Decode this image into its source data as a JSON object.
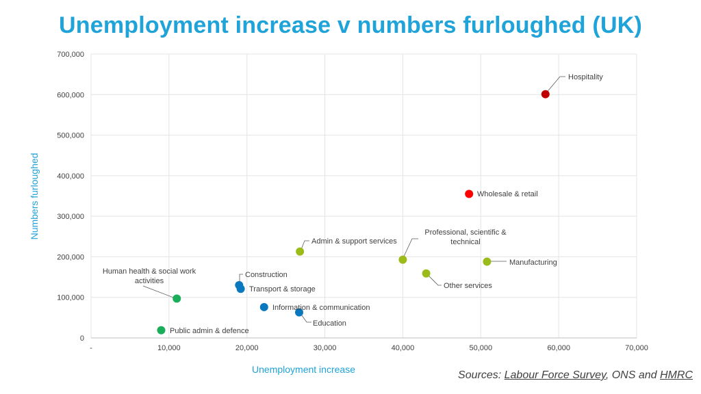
{
  "title": "Unemployment increase v numbers furloughed (UK)",
  "sources": {
    "prefix": "Sources: ",
    "link1": "Labour Force Survey",
    "mid": ", ONS and ",
    "link2": "HMRC"
  },
  "chart_data": {
    "type": "scatter",
    "xlabel": "Unemployment increase",
    "ylabel": "Numbers furloughed",
    "xlim": [
      0,
      70000
    ],
    "ylim": [
      0,
      700000
    ],
    "x_ticks": [
      "-",
      "10,000",
      "20,000",
      "30,000",
      "40,000",
      "50,000",
      "60,000",
      "70,000"
    ],
    "y_ticks": [
      "0",
      "100,000",
      "200,000",
      "300,000",
      "400,000",
      "500,000",
      "600,000",
      "700,000"
    ],
    "grid": true,
    "colors": {
      "dark_red": "#c00000",
      "red": "#ff0000",
      "olive": "#9bbb1a",
      "blue": "#0a78bf",
      "green": "#1aae5a",
      "title": "#1fa3d9"
    },
    "points": [
      {
        "label": "Hospitality",
        "x": 58300,
        "y": 601000,
        "color": "#c00000"
      },
      {
        "label": "Wholesale & retail",
        "x": 48500,
        "y": 355000,
        "color": "#ff0000"
      },
      {
        "label": "Professional, scientific & technical",
        "x": 40000,
        "y": 193000,
        "color": "#9bbb1a"
      },
      {
        "label": "Manufacturing",
        "x": 50800,
        "y": 188000,
        "color": "#9bbb1a"
      },
      {
        "label": "Admin & support services",
        "x": 26800,
        "y": 213000,
        "color": "#9bbb1a"
      },
      {
        "label": "Other services",
        "x": 43000,
        "y": 159000,
        "color": "#9bbb1a"
      },
      {
        "label": "Construction",
        "x": 19000,
        "y": 130000,
        "color": "#0a78bf"
      },
      {
        "label": "Transport & storage",
        "x": 19200,
        "y": 121000,
        "color": "#0a78bf"
      },
      {
        "label": "Information & communication",
        "x": 22200,
        "y": 76000,
        "color": "#0a78bf"
      },
      {
        "label": "Education",
        "x": 26700,
        "y": 63000,
        "color": "#0a78bf"
      },
      {
        "label": "Human health & social work activities",
        "x": 11000,
        "y": 97000,
        "color": "#1aae5a"
      },
      {
        "label": "Public admin & defence",
        "x": 9000,
        "y": 19000,
        "color": "#1aae5a"
      }
    ]
  }
}
